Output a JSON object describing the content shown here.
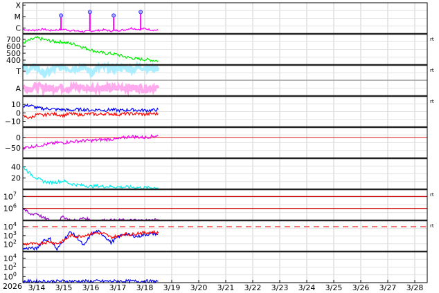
{
  "chart_data": {
    "type": "line",
    "x_axis": {
      "year_label": "2026",
      "tick_labels": [
        "3/14",
        "3/15",
        "3/16",
        "3/17",
        "3/18",
        "3/19",
        "3/20",
        "3/21",
        "3/22",
        "3/23",
        "3/24",
        "3/25",
        "3/26",
        "3/27",
        "3/28"
      ],
      "range_days": [
        13.5,
        28.45
      ]
    },
    "grid": true,
    "side_label": "rt",
    "x_days": [
      13.5,
      13.75,
      14,
      14.25,
      14.5,
      14.75,
      15,
      15.25,
      15.5,
      15.75,
      16,
      16.25,
      16.5,
      16.75,
      17,
      17.25,
      17.5,
      17.75,
      18,
      18.25,
      18.5
    ],
    "panels": [
      {
        "id": "xray",
        "scale": "log",
        "ylim": [
          -6.5,
          -3.8
        ],
        "ticks": [
          {
            "v": -4,
            "t": "X"
          },
          {
            "v": -5,
            "t": "M"
          },
          {
            "v": -6,
            "t": "C"
          }
        ],
        "series": [
          {
            "color": "#ff00ff",
            "values": [
              -6.1,
              -6.2,
              -6.15,
              -6.1,
              -6.2,
              -6.15,
              -6.1,
              -6.2,
              -6.25,
              -6.3,
              -6.25,
              -6.2,
              -6.15,
              -6.25,
              -6.2,
              -6.15,
              -6.0,
              -6.1,
              -6.05,
              -6.15,
              -6.2
            ]
          }
        ],
        "flares": [
          {
            "day": 14.9,
            "log_flux": -4.9
          },
          {
            "day": 15.97,
            "log_flux": -4.6
          },
          {
            "day": 16.85,
            "log_flux": -4.9
          },
          {
            "day": 17.85,
            "log_flux": -4.6
          }
        ],
        "marker_color": "#3333ff",
        "rt": false
      },
      {
        "id": "speed",
        "scale": "linear",
        "ylim": [
          330,
          780
        ],
        "ticks": [
          {
            "v": 700,
            "t": "700"
          },
          {
            "v": 600,
            "t": "600"
          },
          {
            "v": 500,
            "t": "500"
          },
          {
            "v": 400,
            "t": "400"
          }
        ],
        "series": [
          {
            "color": "#00ee00",
            "values": [
              650,
              690,
              720,
              700,
              680,
              665,
              660,
              640,
              620,
              580,
              550,
              520,
              500,
              495,
              480,
              450,
              430,
              415,
              410,
              400,
              390
            ]
          }
        ],
        "rt": true
      },
      {
        "id": "ta",
        "scale": "linear",
        "ylim": [
          0,
          10
        ],
        "ticks": [
          {
            "v": 8,
            "t": "T"
          },
          {
            "v": 2.5,
            "t": "A"
          }
        ],
        "series": [
          {
            "color": "#ffaaee",
            "values": [
              2.8,
              2.5,
              3,
              2.6,
              2.4,
              2.9,
              2.7,
              2.5,
              3,
              2.6,
              2.4,
              2.8,
              2.7,
              2.3,
              2.6,
              2.9,
              2.5,
              2.7,
              2.4,
              2.8,
              2.6
            ]
          },
          {
            "color": "#aaeeff",
            "values": [
              9,
              8.5,
              9.5,
              7,
              8,
              9,
              9.5,
              8.8,
              9.2,
              9.5,
              7.5,
              9,
              9.3,
              8.7,
              9.4,
              9,
              8.8,
              9.1,
              9.5,
              8.6,
              9.2
            ]
          }
        ],
        "rt": true
      },
      {
        "id": "bfield",
        "scale": "linear",
        "ylim": [
          -17,
          20
        ],
        "ticks": [
          {
            "v": 10,
            "t": "10"
          },
          {
            "v": 0,
            "t": "0"
          },
          {
            "v": -10,
            "t": "−10"
          }
        ],
        "series": [
          {
            "color": "#0000ff",
            "values": [
              8,
              9,
              6,
              5,
              5,
              4,
              4,
              3,
              4,
              4,
              3,
              4,
              3,
              4,
              3,
              3,
              4,
              3,
              3,
              3,
              4
            ]
          },
          {
            "color": "#ff0000",
            "values": [
              -4,
              -6,
              -2,
              -3,
              -1,
              -2,
              -3,
              -1,
              -2,
              -2,
              -1,
              -2,
              -1,
              -1,
              -2,
              -1,
              -1,
              -1,
              -2,
              -1,
              -1
            ]
          }
        ],
        "rt": true
      },
      {
        "id": "dst",
        "scale": "linear",
        "ylim": [
          -100,
          50
        ],
        "ticks": [
          {
            "v": 0,
            "t": "0"
          },
          {
            "v": -50,
            "t": "−50"
          }
        ],
        "ref_lines": [
          {
            "v": 0,
            "color": "#e04040"
          }
        ],
        "series": [
          {
            "color": "#ee00ee",
            "values": [
              -50,
              -45,
              -40,
              -35,
              -30,
              -25,
              -25,
              -20,
              -18,
              -15,
              -15,
              -12,
              -10,
              -8,
              -8,
              0,
              5,
              2,
              0,
              5,
              10
            ]
          }
        ],
        "rt": false
      },
      {
        "id": "density",
        "scale": "linear",
        "ylim": [
          0,
          55
        ],
        "ticks": [
          {
            "v": 40,
            "t": "40"
          },
          {
            "v": 20,
            "t": "20"
          }
        ],
        "series": [
          {
            "color": "#00eeee",
            "values": [
              40,
              28,
              20,
              14,
              12,
              13,
              15,
              10,
              8,
              7,
              5,
              6,
              5,
              5,
              4,
              4,
              4,
              3,
              3,
              3,
              3
            ]
          }
        ],
        "rt": false
      },
      {
        "id": "electron",
        "scale": "log",
        "ylim": [
          5,
          7.6
        ],
        "ticks": [
          {
            "v": 7,
            "b": "10",
            "e": "7"
          },
          {
            "v": 6,
            "b": "10",
            "e": "6"
          }
        ],
        "ref_lines": [
          {
            "v": 7,
            "color": "#cc0000"
          },
          {
            "v": 6,
            "color": "#cc0000"
          }
        ],
        "series": [
          {
            "color": "#9900cc",
            "values": [
              6.0,
              5.5,
              5.6,
              5.2,
              5.0,
              5.0,
              5.3,
              5.0,
              5.0,
              5.2,
              5.0,
              5.0,
              5.0,
              5.0,
              5.0,
              5.0,
              5.0,
              5.0,
              5.0,
              5.0,
              5.1
            ]
          }
        ],
        "rt": true
      },
      {
        "id": "proton",
        "scale": "log",
        "ylim": [
          1.2,
          4.7
        ],
        "ticks": [
          {
            "v": 4,
            "b": "10",
            "e": "4"
          },
          {
            "v": 3,
            "b": "10",
            "e": "3"
          },
          {
            "v": 2,
            "b": "10",
            "e": "2"
          }
        ],
        "ref_lines": [
          {
            "v": 4,
            "color": "#ee2222",
            "dashed": true
          }
        ],
        "series": [
          {
            "color": "#0000ff",
            "values": [
              1.5,
              1.6,
              1.5,
              2.5,
              2.6,
              1.4,
              2.5,
              3.4,
              2.8,
              1.8,
              3.1,
              3.5,
              3.0,
              2.2,
              2.8,
              3.2,
              3.0,
              2.9,
              3.1,
              3.2,
              3.2
            ]
          },
          {
            "color": "#ff0000",
            "values": [
              2.0,
              2.1,
              2.0,
              2.2,
              2.3,
              2.1,
              2.4,
              3.0,
              2.9,
              3.0,
              3.2,
              3.3,
              3.2,
              2.8,
              2.9,
              3.2,
              3.1,
              3.3,
              3.3,
              3.4,
              3.3
            ]
          }
        ],
        "rt": true
      },
      {
        "id": "highenergy",
        "scale": "log",
        "ylim": [
          -1.3,
          5.5
        ],
        "ticks": [
          {
            "v": 4,
            "b": "10",
            "e": "4"
          },
          {
            "v": 2,
            "b": "10",
            "e": "2"
          },
          {
            "v": 0,
            "b": "10",
            "e": "0"
          }
        ],
        "series": [
          {
            "color": "#0000ff",
            "values": [
              -1,
              -1,
              -1,
              -1,
              -1,
              -1,
              -0.95,
              -1,
              -1,
              -1,
              -1,
              -0.98,
              -1,
              -1,
              -0.97,
              -1,
              -1,
              -1,
              -1,
              -1,
              -1
            ]
          }
        ],
        "rt": false
      }
    ]
  }
}
